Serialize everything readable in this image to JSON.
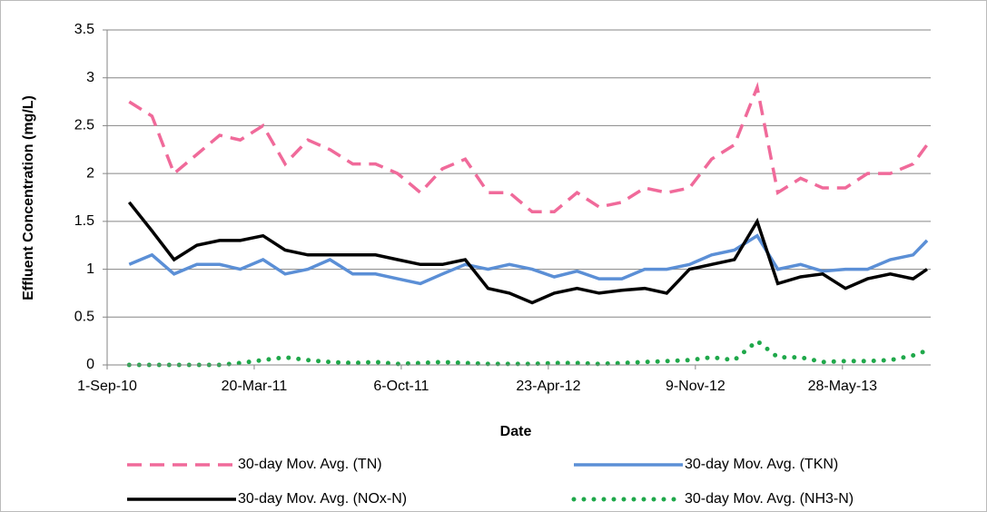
{
  "chart_data": {
    "type": "line",
    "x_label": "Date",
    "y_label": "Effluent Concentration (mg/L)",
    "x": [
      "2010-10-01",
      "2010-11-01",
      "2010-12-01",
      "2011-01-01",
      "2011-02-01",
      "2011-03-01",
      "2011-04-01",
      "2011-05-01",
      "2011-06-01",
      "2011-07-01",
      "2011-08-01",
      "2011-09-01",
      "2011-10-01",
      "2011-11-01",
      "2011-12-01",
      "2012-01-01",
      "2012-02-01",
      "2012-03-01",
      "2012-04-01",
      "2012-05-01",
      "2012-06-01",
      "2012-07-01",
      "2012-08-01",
      "2012-09-01",
      "2012-10-01",
      "2012-11-01",
      "2012-12-01",
      "2013-01-01",
      "2013-02-01",
      "2013-03-01",
      "2013-04-01",
      "2013-05-01",
      "2013-06-01",
      "2013-07-01",
      "2013-08-01",
      "2013-09-01",
      "2013-09-20"
    ],
    "series": [
      {
        "name": "30-day Mov. Avg. (TN)",
        "color": "#f06a9a",
        "style": "dashed",
        "values": [
          2.75,
          2.6,
          2.0,
          2.2,
          2.4,
          2.35,
          2.5,
          2.1,
          2.35,
          2.25,
          2.1,
          2.1,
          2.0,
          1.8,
          2.05,
          2.15,
          1.8,
          1.8,
          1.6,
          1.6,
          1.8,
          1.65,
          1.7,
          1.85,
          1.8,
          1.85,
          2.15,
          2.3,
          2.9,
          1.8,
          1.95,
          1.85,
          1.85,
          2.0,
          2.0,
          2.1,
          2.3
        ]
      },
      {
        "name": "30-day Mov. Avg. (TKN)",
        "color": "#5b8fd6",
        "style": "solid",
        "values": [
          1.05,
          1.15,
          0.95,
          1.05,
          1.05,
          1.0,
          1.1,
          0.95,
          1.0,
          1.1,
          0.95,
          0.95,
          0.9,
          0.85,
          0.95,
          1.05,
          1.0,
          1.05,
          1.0,
          0.92,
          0.98,
          0.9,
          0.9,
          1.0,
          1.0,
          1.05,
          1.15,
          1.2,
          1.35,
          1.0,
          1.05,
          0.98,
          1.0,
          1.0,
          1.1,
          1.15,
          1.3
        ]
      },
      {
        "name": "30-day Mov. Avg. (NOx-N)",
        "color": "#000000",
        "style": "solid",
        "values": [
          1.7,
          1.4,
          1.1,
          1.25,
          1.3,
          1.3,
          1.35,
          1.2,
          1.15,
          1.15,
          1.15,
          1.15,
          1.1,
          1.05,
          1.05,
          1.1,
          0.8,
          0.75,
          0.65,
          0.75,
          0.8,
          0.75,
          0.78,
          0.8,
          0.75,
          1.0,
          1.05,
          1.1,
          1.5,
          0.85,
          0.92,
          0.95,
          0.8,
          0.9,
          0.95,
          0.9,
          1.0
        ]
      },
      {
        "name": "30-day Mov. Avg. (NH3-N)",
        "color": "#1fa84a",
        "style": "dotted",
        "values": [
          0,
          0,
          0,
          0,
          0,
          0.02,
          0.05,
          0.08,
          0.05,
          0.03,
          0.02,
          0.03,
          0.01,
          0.02,
          0.03,
          0.02,
          0.01,
          0.01,
          0.01,
          0.02,
          0.02,
          0.01,
          0.02,
          0.03,
          0.04,
          0.05,
          0.08,
          0.05,
          0.25,
          0.08,
          0.08,
          0.03,
          0.04,
          0.04,
          0.05,
          0.1,
          0.15
        ]
      }
    ],
    "xlim": [
      "2010-09-01",
      "2013-09-25"
    ],
    "xticks": [
      {
        "value": "2010-09-01",
        "label": "1-Sep-10"
      },
      {
        "value": "2011-03-20",
        "label": "20-Mar-11"
      },
      {
        "value": "2011-10-06",
        "label": "6-Oct-11"
      },
      {
        "value": "2012-04-23",
        "label": "23-Apr-12"
      },
      {
        "value": "2012-11-09",
        "label": "9-Nov-12"
      },
      {
        "value": "2013-05-28",
        "label": "28-May-13"
      }
    ],
    "ylim": [
      0,
      3.5
    ],
    "yticks": [
      0,
      0.5,
      1,
      1.5,
      2,
      2.5,
      3,
      3.5
    ],
    "grid": true,
    "legend": "bottom"
  }
}
